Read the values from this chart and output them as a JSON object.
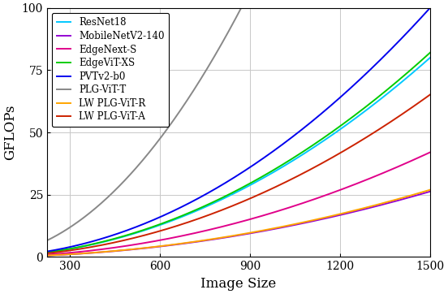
{
  "title": "",
  "xlabel": "Image Size",
  "ylabel": "GFLOPs",
  "xlim": [
    224,
    1500
  ],
  "ylim": [
    0,
    100
  ],
  "xticks": [
    300,
    600,
    900,
    1200,
    1500
  ],
  "yticks": [
    0,
    25,
    50,
    75,
    100
  ],
  "series": [
    {
      "label": "ResNet18",
      "color": "#00c8ff",
      "coeff": 3.56e-05,
      "power": 2
    },
    {
      "label": "MobileNetV2-140",
      "color": "#9400d3",
      "coeff": 1.17e-05,
      "power": 2
    },
    {
      "label": "EdgeNext-S",
      "color": "#e0008a",
      "coeff": 1.87e-05,
      "power": 2
    },
    {
      "label": "EdgeViT-XS",
      "color": "#00cc00",
      "coeff": 3.65e-05,
      "power": 2
    },
    {
      "label": "PVTv2-b0",
      "color": "#0000ee",
      "coeff": 4.45e-05,
      "power": 2
    },
    {
      "label": "PLG-ViT-T",
      "color": "#888888",
      "coeff": 0.000132,
      "power": 2
    },
    {
      "label": "LW PLG-ViT-R",
      "color": "#ffa500",
      "coeff": 1.2e-05,
      "power": 2
    },
    {
      "label": "LW PLG-ViT-A",
      "color": "#cc2200",
      "coeff": 2.9e-05,
      "power": 2
    }
  ],
  "grid_color": "#c8c8c8",
  "background_color": "#ffffff",
  "legend_fontsize": 8.5,
  "axis_fontsize": 12,
  "tick_fontsize": 10
}
